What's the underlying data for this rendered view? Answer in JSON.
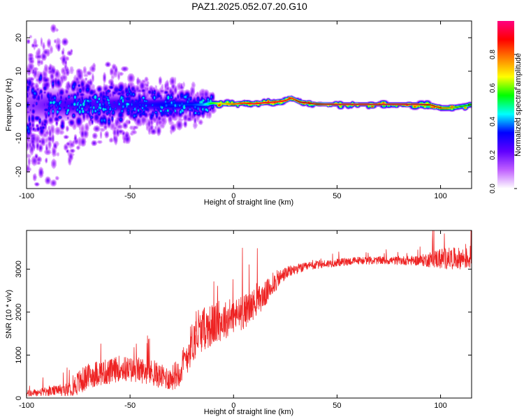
{
  "title": "PAZ1.2025.052.07.20.G10",
  "chart_data": [
    {
      "type": "heatmap",
      "xlabel": "Height of straight line (km)",
      "ylabel": "Frequency (Hz)",
      "xlim": [
        -100,
        115
      ],
      "ylim": [
        -25,
        25
      ],
      "xticks": [
        -100,
        -50,
        0,
        50,
        100
      ],
      "yticks": [
        -20,
        -10,
        0,
        10,
        20
      ],
      "colorbar": {
        "label": "Normalized spectral amplitude",
        "range": [
          0,
          1
        ],
        "ticks": [
          "0.0",
          "0.2",
          "0.4",
          "0.6",
          "0.8"
        ],
        "colormap": [
          "#ffffff",
          "#c060ff",
          "#6000ff",
          "#0000ff",
          "#00ffff",
          "#00ff00",
          "#ffff00",
          "#ff8000",
          "#ff0000",
          "#ff0080"
        ]
      },
      "ridge": {
        "description_points_x": [
          -100,
          -90,
          -80,
          -70,
          -60,
          -50,
          -40,
          -30,
          -20,
          -15,
          -10,
          -5,
          0,
          5,
          10,
          15,
          20,
          25,
          28,
          32,
          40,
          50,
          60,
          70,
          80,
          90,
          95,
          100,
          105,
          110,
          115
        ],
        "frequency_hz": [
          0,
          0,
          0,
          0,
          0,
          0,
          0,
          0,
          0,
          0,
          0.5,
          0.3,
          0.2,
          0.5,
          0.3,
          0.6,
          0.8,
          1.2,
          2,
          0.8,
          0.2,
          0.1,
          0.1,
          0.1,
          0.1,
          0.1,
          0,
          -1,
          -1,
          -0.5,
          0
        ],
        "amplitude": [
          0.15,
          0.2,
          0.25,
          0.25,
          0.25,
          0.3,
          0.3,
          0.35,
          0.35,
          0.4,
          0.6,
          0.75,
          0.85,
          0.9,
          0.95,
          0.95,
          0.95,
          0.95,
          0.9,
          0.95,
          1.0,
          1.0,
          1.0,
          1.0,
          1.0,
          1.0,
          0.9,
          0.8,
          0.7,
          0.6,
          0.6
        ],
        "spread_hz": [
          9,
          8,
          7,
          6,
          6,
          5,
          4,
          4,
          3,
          2.5,
          1.2,
          1,
          1,
          1,
          1,
          1,
          1,
          1,
          1,
          1,
          0.8,
          0.8,
          0.8,
          0.8,
          0.8,
          0.8,
          1,
          1.2,
          1.2,
          1.2,
          1.2
        ]
      }
    },
    {
      "type": "line",
      "xlabel": "Height of straight line (km)",
      "ylabel": "SNR (10 * v/v)",
      "xlim": [
        -100,
        115
      ],
      "ylim": [
        0,
        3900
      ],
      "xticks": [
        -100,
        -50,
        0,
        50,
        100
      ],
      "yticks": [
        0,
        1000,
        2000,
        3000
      ],
      "series": [
        {
          "color": "#ee2222",
          "x": [
            -100,
            -90,
            -80,
            -75,
            -70,
            -65,
            -60,
            -55,
            -50,
            -45,
            -40,
            -35,
            -30,
            -25,
            -20,
            -15,
            -10,
            -5,
            0,
            5,
            10,
            15,
            20,
            25,
            30,
            35,
            40,
            50,
            60,
            70,
            80,
            90,
            100,
            105,
            110,
            115
          ],
          "y": [
            100,
            150,
            200,
            350,
            500,
            600,
            600,
            700,
            650,
            650,
            600,
            500,
            450,
            700,
            1300,
            1600,
            1700,
            1800,
            1900,
            2000,
            2200,
            2400,
            2700,
            2900,
            3000,
            3050,
            3100,
            3150,
            3200,
            3200,
            3200,
            3200,
            3250,
            3250,
            3250,
            3250
          ],
          "noise": [
            80,
            100,
            150,
            300,
            300,
            300,
            300,
            300,
            300,
            300,
            300,
            280,
            280,
            400,
            500,
            500,
            500,
            450,
            400,
            400,
            350,
            300,
            250,
            150,
            120,
            100,
            100,
            90,
            90,
            90,
            100,
            120,
            250,
            250,
            250,
            250
          ]
        }
      ]
    }
  ]
}
